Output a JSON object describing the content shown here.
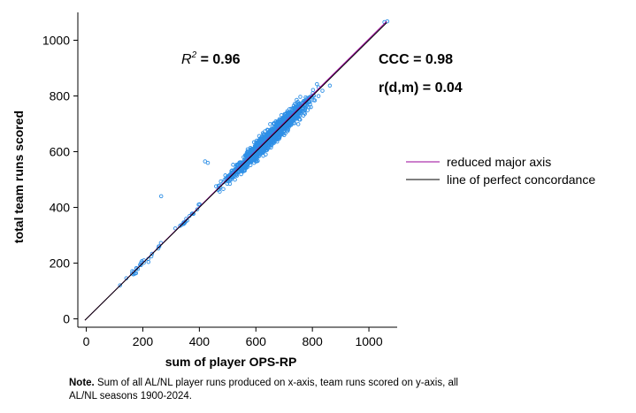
{
  "chart_data": {
    "type": "scatter",
    "xlabel": "sum of player OPS-RP",
    "ylabel": "total team runs scored",
    "xlim": [
      -30,
      1100
    ],
    "ylim": [
      -30,
      1100
    ],
    "xticks": [
      0,
      200,
      400,
      600,
      800,
      1000
    ],
    "yticks": [
      0,
      200,
      400,
      600,
      800,
      1000
    ],
    "grid": false,
    "marker_color": "#2e8fe6",
    "stats": {
      "r2_symbol": "R",
      "r2_sup": "2",
      "r2_value": " = 0.96",
      "ccc": "CCC = 0.98",
      "rdm": "r(d,m) = 0.04"
    },
    "lines": [
      {
        "name": "reduced major axis",
        "color": "#990099",
        "x": [
          -5,
          1063
        ],
        "y": [
          -5,
          1068
        ]
      },
      {
        "name": "line of perfect concordance",
        "color": "#000000",
        "x": [
          -5,
          1063
        ],
        "y": [
          -5,
          1063
        ]
      }
    ],
    "legend_position": "right",
    "points_summary": {
      "x_range": [
        110,
        1060
      ],
      "notable_points": [
        [
          265,
          440
        ],
        [
          420,
          565
        ],
        [
          430,
          560
        ],
        [
          1055,
          1065
        ],
        [
          1065,
          1068
        ]
      ]
    }
  },
  "note": {
    "bold": "Note.",
    "text": " Sum of all AL/NL player runs produced  on x-axis, team runs scored on y-axis, all AL/NL seasons 1900-2024."
  }
}
